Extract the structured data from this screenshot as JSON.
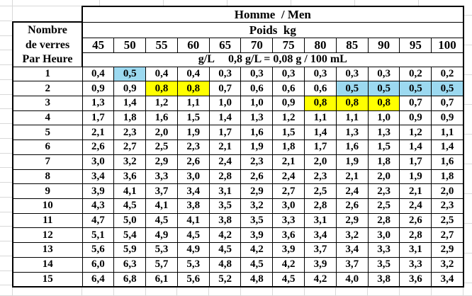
{
  "table": {
    "title": "Homme  / Men",
    "weight_header": "Poids  kg",
    "unit_note": "g/L     0,8 g/L = 0,08 g / 100 mL",
    "row_header_lines": [
      "Nombre",
      "de verres",
      "Par Heure"
    ],
    "weights": [
      "45",
      "50",
      "55",
      "60",
      "65",
      "70",
      "75",
      "80",
      "85",
      "90",
      "95",
      "100"
    ],
    "rows": [
      {
        "label": "1",
        "values": [
          "0,4",
          "0,5",
          "0,4",
          "0,4",
          "0,3",
          "0,3",
          "0,3",
          "0,3",
          "0,3",
          "0,3",
          "0,2",
          "0,2"
        ]
      },
      {
        "label": "2",
        "values": [
          "0,9",
          "0,9",
          "0,8",
          "0,8",
          "0,7",
          "0,6",
          "0,6",
          "0,6",
          "0,5",
          "0,5",
          "0,5",
          "0,5"
        ]
      },
      {
        "label": "3",
        "values": [
          "1,3",
          "1,4",
          "1,2",
          "1,1",
          "1,0",
          "1,0",
          "0,9",
          "0,8",
          "0,8",
          "0,8",
          "0,7",
          "0,7"
        ]
      },
      {
        "label": "4",
        "values": [
          "1,7",
          "1,8",
          "1,6",
          "1,5",
          "1,4",
          "1,3",
          "1,2",
          "1,1",
          "1,1",
          "1,0",
          "0,9",
          "0,9"
        ]
      },
      {
        "label": "5",
        "values": [
          "2,1",
          "2,3",
          "2,0",
          "1,9",
          "1,7",
          "1,6",
          "1,5",
          "1,4",
          "1,3",
          "1,3",
          "1,2",
          "1,1"
        ]
      },
      {
        "label": "6",
        "values": [
          "2,6",
          "2,7",
          "2,5",
          "2,3",
          "2,1",
          "1,9",
          "1,8",
          "1,7",
          "1,6",
          "1,5",
          "1,4",
          "1,4"
        ]
      },
      {
        "label": "7",
        "values": [
          "3,0",
          "3,2",
          "2,9",
          "2,6",
          "2,4",
          "2,3",
          "2,1",
          "2,0",
          "1,9",
          "1,8",
          "1,7",
          "1,6"
        ]
      },
      {
        "label": "8",
        "values": [
          "3,4",
          "3,6",
          "3,3",
          "3,0",
          "2,8",
          "2,6",
          "2,4",
          "2,3",
          "2,1",
          "2,0",
          "1,9",
          "1,8"
        ]
      },
      {
        "label": "9",
        "values": [
          "3,9",
          "4,1",
          "3,7",
          "3,4",
          "3,1",
          "2,9",
          "2,7",
          "2,5",
          "2,4",
          "2,3",
          "2,1",
          "2,0"
        ]
      },
      {
        "label": "10",
        "values": [
          "4,3",
          "4,5",
          "4,1",
          "3,8",
          "3,5",
          "3,2",
          "3,0",
          "2,8",
          "2,6",
          "2,5",
          "2,4",
          "2,3"
        ]
      },
      {
        "label": "11",
        "values": [
          "4,7",
          "5,0",
          "4,5",
          "4,1",
          "3,8",
          "3,5",
          "3,3",
          "3,1",
          "2,9",
          "2,8",
          "2,6",
          "2,5"
        ]
      },
      {
        "label": "12",
        "values": [
          "5,1",
          "5,4",
          "4,9",
          "4,5",
          "4,2",
          "3,9",
          "3,6",
          "3,4",
          "3,2",
          "3,0",
          "2,8",
          "2,7"
        ]
      },
      {
        "label": "13",
        "values": [
          "5,6",
          "5,9",
          "5,3",
          "4,9",
          "4,5",
          "4,2",
          "3,9",
          "3,7",
          "3,4",
          "3,3",
          "3,1",
          "2,9"
        ]
      },
      {
        "label": "14",
        "values": [
          "6,0",
          "6,3",
          "5,7",
          "5,3",
          "4,8",
          "4,5",
          "4,2",
          "3,9",
          "3,7",
          "3,5",
          "3,3",
          "3,2"
        ]
      },
      {
        "label": "15",
        "values": [
          "6,4",
          "6,8",
          "6,1",
          "5,6",
          "5,2",
          "4,8",
          "4,5",
          "4,2",
          "4,0",
          "3,8",
          "3,6",
          "3,4"
        ]
      }
    ],
    "highlights": [
      {
        "row": 0,
        "col": 1,
        "color": "blue"
      },
      {
        "row": 1,
        "col": 2,
        "color": "yellow"
      },
      {
        "row": 1,
        "col": 3,
        "color": "yellow"
      },
      {
        "row": 1,
        "col": 8,
        "color": "blue"
      },
      {
        "row": 1,
        "col": 9,
        "color": "blue"
      },
      {
        "row": 1,
        "col": 10,
        "color": "blue"
      },
      {
        "row": 1,
        "col": 11,
        "color": "blue"
      },
      {
        "row": 2,
        "col": 7,
        "color": "yellow"
      },
      {
        "row": 2,
        "col": 8,
        "color": "yellow"
      },
      {
        "row": 2,
        "col": 9,
        "color": "yellow"
      }
    ],
    "colors": {
      "blue": "#9CD9F0",
      "yellow": "#FFFF00",
      "border": "#000000",
      "gridline": "#D8D8D8"
    }
  }
}
